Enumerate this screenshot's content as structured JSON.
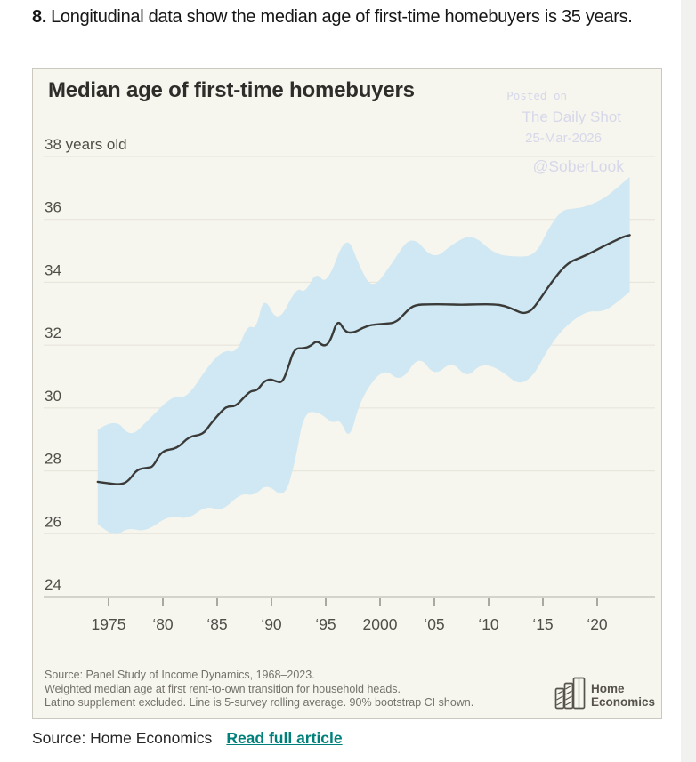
{
  "page": {
    "heading_number": "8.",
    "heading_text": "Longitudinal data show the median age of first-time homebuyers is 35 years.",
    "source_label": "Source: Home Economics",
    "link_label": "Read full article"
  },
  "chart": {
    "title": "Median age of first-time homebuyers",
    "watermark": {
      "line1": "Posted on",
      "line2": "The Daily Shot",
      "line3": "25-Mar-2026",
      "line4": "@SoberLook"
    },
    "notes": [
      "Source: Panel Study of Income Dynamics, 1968–2023.",
      "Weighted median age at first rent-to-own transition for household heads.",
      "Latino supplement excluded. Line is 5-survey rolling average. 90% bootstrap CI shown."
    ],
    "logo": {
      "line1": "Home",
      "line2": "Economics"
    }
  },
  "chart_data": {
    "type": "line",
    "title": "Median age of first-time homebuyers",
    "xlabel": "",
    "ylabel": "years old",
    "xlim": [
      1971.5,
      2025.5
    ],
    "ylim": [
      23.2,
      39.2
    ],
    "grid": true,
    "legend": "none",
    "y_ticks": [
      {
        "value": 38,
        "label": "38 years old"
      },
      {
        "value": 36,
        "label": "36"
      },
      {
        "value": 34,
        "label": "34"
      },
      {
        "value": 32,
        "label": "32"
      },
      {
        "value": 30,
        "label": "30"
      },
      {
        "value": 28,
        "label": "28"
      },
      {
        "value": 26,
        "label": "26"
      },
      {
        "value": 24,
        "label": "24"
      }
    ],
    "x_ticks": [
      {
        "year": 1975,
        "label": "1975"
      },
      {
        "year": 1980,
        "label": "‘80"
      },
      {
        "year": 1985,
        "label": "‘85"
      },
      {
        "year": 1990,
        "label": "‘90"
      },
      {
        "year": 1995,
        "label": "‘95"
      },
      {
        "year": 2000,
        "label": "2000"
      },
      {
        "year": 2005,
        "label": "‘05"
      },
      {
        "year": 2010,
        "label": "‘10"
      },
      {
        "year": 2015,
        "label": "‘15"
      },
      {
        "year": 2020,
        "label": "‘20"
      }
    ],
    "series": [
      {
        "name": "Median age (5-survey rolling average)",
        "role": "line",
        "points": [
          [
            1974.0,
            27.65
          ],
          [
            1975.0,
            27.6
          ],
          [
            1976.2,
            27.56
          ],
          [
            1976.9,
            27.7
          ],
          [
            1977.6,
            28.05
          ],
          [
            1978.6,
            28.1
          ],
          [
            1979.1,
            28.13
          ],
          [
            1979.9,
            28.65
          ],
          [
            1981.3,
            28.7
          ],
          [
            1982.4,
            29.1
          ],
          [
            1983.7,
            29.15
          ],
          [
            1984.4,
            29.5
          ],
          [
            1985.4,
            29.9
          ],
          [
            1985.9,
            30.05
          ],
          [
            1986.7,
            30.05
          ],
          [
            1987.5,
            30.35
          ],
          [
            1988.1,
            30.55
          ],
          [
            1988.7,
            30.55
          ],
          [
            1989.3,
            30.85
          ],
          [
            1989.9,
            30.92
          ],
          [
            1990.4,
            30.85
          ],
          [
            1991.0,
            30.8
          ],
          [
            1991.5,
            31.25
          ],
          [
            1992.1,
            31.9
          ],
          [
            1993.0,
            31.9
          ],
          [
            1993.6,
            31.97
          ],
          [
            1994.2,
            32.15
          ],
          [
            1994.8,
            31.95
          ],
          [
            1995.4,
            32.1
          ],
          [
            1996.1,
            32.85
          ],
          [
            1996.8,
            32.4
          ],
          [
            1997.6,
            32.4
          ],
          [
            1998.4,
            32.55
          ],
          [
            1999.2,
            32.65
          ],
          [
            2000.5,
            32.68
          ],
          [
            2001.5,
            32.72
          ],
          [
            2002.5,
            33.1
          ],
          [
            2003.2,
            33.28
          ],
          [
            2004.5,
            33.3
          ],
          [
            2006.0,
            33.3
          ],
          [
            2007.5,
            33.28
          ],
          [
            2009.0,
            33.3
          ],
          [
            2010.5,
            33.3
          ],
          [
            2011.5,
            33.25
          ],
          [
            2012.5,
            33.1
          ],
          [
            2013.2,
            33.0
          ],
          [
            2014.0,
            33.1
          ],
          [
            2015.0,
            33.6
          ],
          [
            2015.8,
            34.0
          ],
          [
            2016.7,
            34.4
          ],
          [
            2017.5,
            34.65
          ],
          [
            2018.6,
            34.8
          ],
          [
            2019.5,
            34.95
          ],
          [
            2020.6,
            35.15
          ],
          [
            2021.5,
            35.3
          ],
          [
            2022.4,
            35.45
          ],
          [
            2023.0,
            35.5
          ]
        ]
      },
      {
        "name": "90% bootstrap CI upper",
        "role": "band_upper",
        "points": [
          [
            1974.0,
            29.3
          ],
          [
            1975.6,
            29.7
          ],
          [
            1977.0,
            29.05
          ],
          [
            1978.6,
            29.6
          ],
          [
            1980.9,
            30.4
          ],
          [
            1982.2,
            30.3
          ],
          [
            1984.2,
            31.35
          ],
          [
            1985.6,
            31.85
          ],
          [
            1986.8,
            31.75
          ],
          [
            1987.8,
            32.65
          ],
          [
            1988.6,
            32.5
          ],
          [
            1989.3,
            33.6
          ],
          [
            1990.6,
            32.65
          ],
          [
            1992.3,
            33.85
          ],
          [
            1993.1,
            33.65
          ],
          [
            1994.1,
            34.35
          ],
          [
            1995.1,
            33.9
          ],
          [
            1996.9,
            35.6
          ],
          [
            1998.1,
            34.5
          ],
          [
            1999.3,
            33.75
          ],
          [
            2001.1,
            34.6
          ],
          [
            2002.9,
            35.55
          ],
          [
            2004.9,
            34.7
          ],
          [
            2006.6,
            35.2
          ],
          [
            2008.5,
            35.55
          ],
          [
            2010.5,
            34.9
          ],
          [
            2012.5,
            34.8
          ],
          [
            2014.3,
            34.85
          ],
          [
            2015.5,
            35.7
          ],
          [
            2016.7,
            36.3
          ],
          [
            2018.0,
            36.35
          ],
          [
            2018.9,
            36.4
          ],
          [
            2020.6,
            36.65
          ],
          [
            2022.0,
            37.05
          ],
          [
            2023.0,
            37.35
          ]
        ]
      },
      {
        "name": "90% bootstrap CI lower",
        "role": "band_lower",
        "points": [
          [
            1974.0,
            26.3
          ],
          [
            1975.6,
            25.9
          ],
          [
            1976.8,
            26.2
          ],
          [
            1978.4,
            26.05
          ],
          [
            1980.6,
            26.6
          ],
          [
            1982.3,
            26.45
          ],
          [
            1984.0,
            26.9
          ],
          [
            1985.4,
            26.7
          ],
          [
            1987.2,
            27.3
          ],
          [
            1988.4,
            27.2
          ],
          [
            1989.6,
            27.6
          ],
          [
            1991.2,
            27.1
          ],
          [
            1992.2,
            28.3
          ],
          [
            1993.0,
            29.9
          ],
          [
            1994.5,
            29.85
          ],
          [
            1995.6,
            29.5
          ],
          [
            1996.3,
            29.65
          ],
          [
            1997.2,
            28.95
          ],
          [
            1998.2,
            30.3
          ],
          [
            2000.3,
            31.3
          ],
          [
            2001.9,
            30.8
          ],
          [
            2003.6,
            31.7
          ],
          [
            2005.0,
            31.0
          ],
          [
            2006.6,
            31.5
          ],
          [
            2008.0,
            30.95
          ],
          [
            2009.2,
            31.4
          ],
          [
            2010.8,
            31.3
          ],
          [
            2013.4,
            30.55
          ],
          [
            2016.1,
            32.3
          ],
          [
            2018.9,
            33.1
          ],
          [
            2020.6,
            33.05
          ],
          [
            2022.0,
            33.4
          ],
          [
            2023.0,
            33.7
          ]
        ]
      }
    ],
    "colors": {
      "panel_bg": "#f6f5ee",
      "band": "#cfe8f3",
      "line": "#3a3a38",
      "grid": "#e5e3d8",
      "axis": "#b3b1a5",
      "tick": "#8a887e",
      "tick_label": "#4f4e48",
      "watermark": "#d6d8ea",
      "link": "#00807a"
    }
  }
}
